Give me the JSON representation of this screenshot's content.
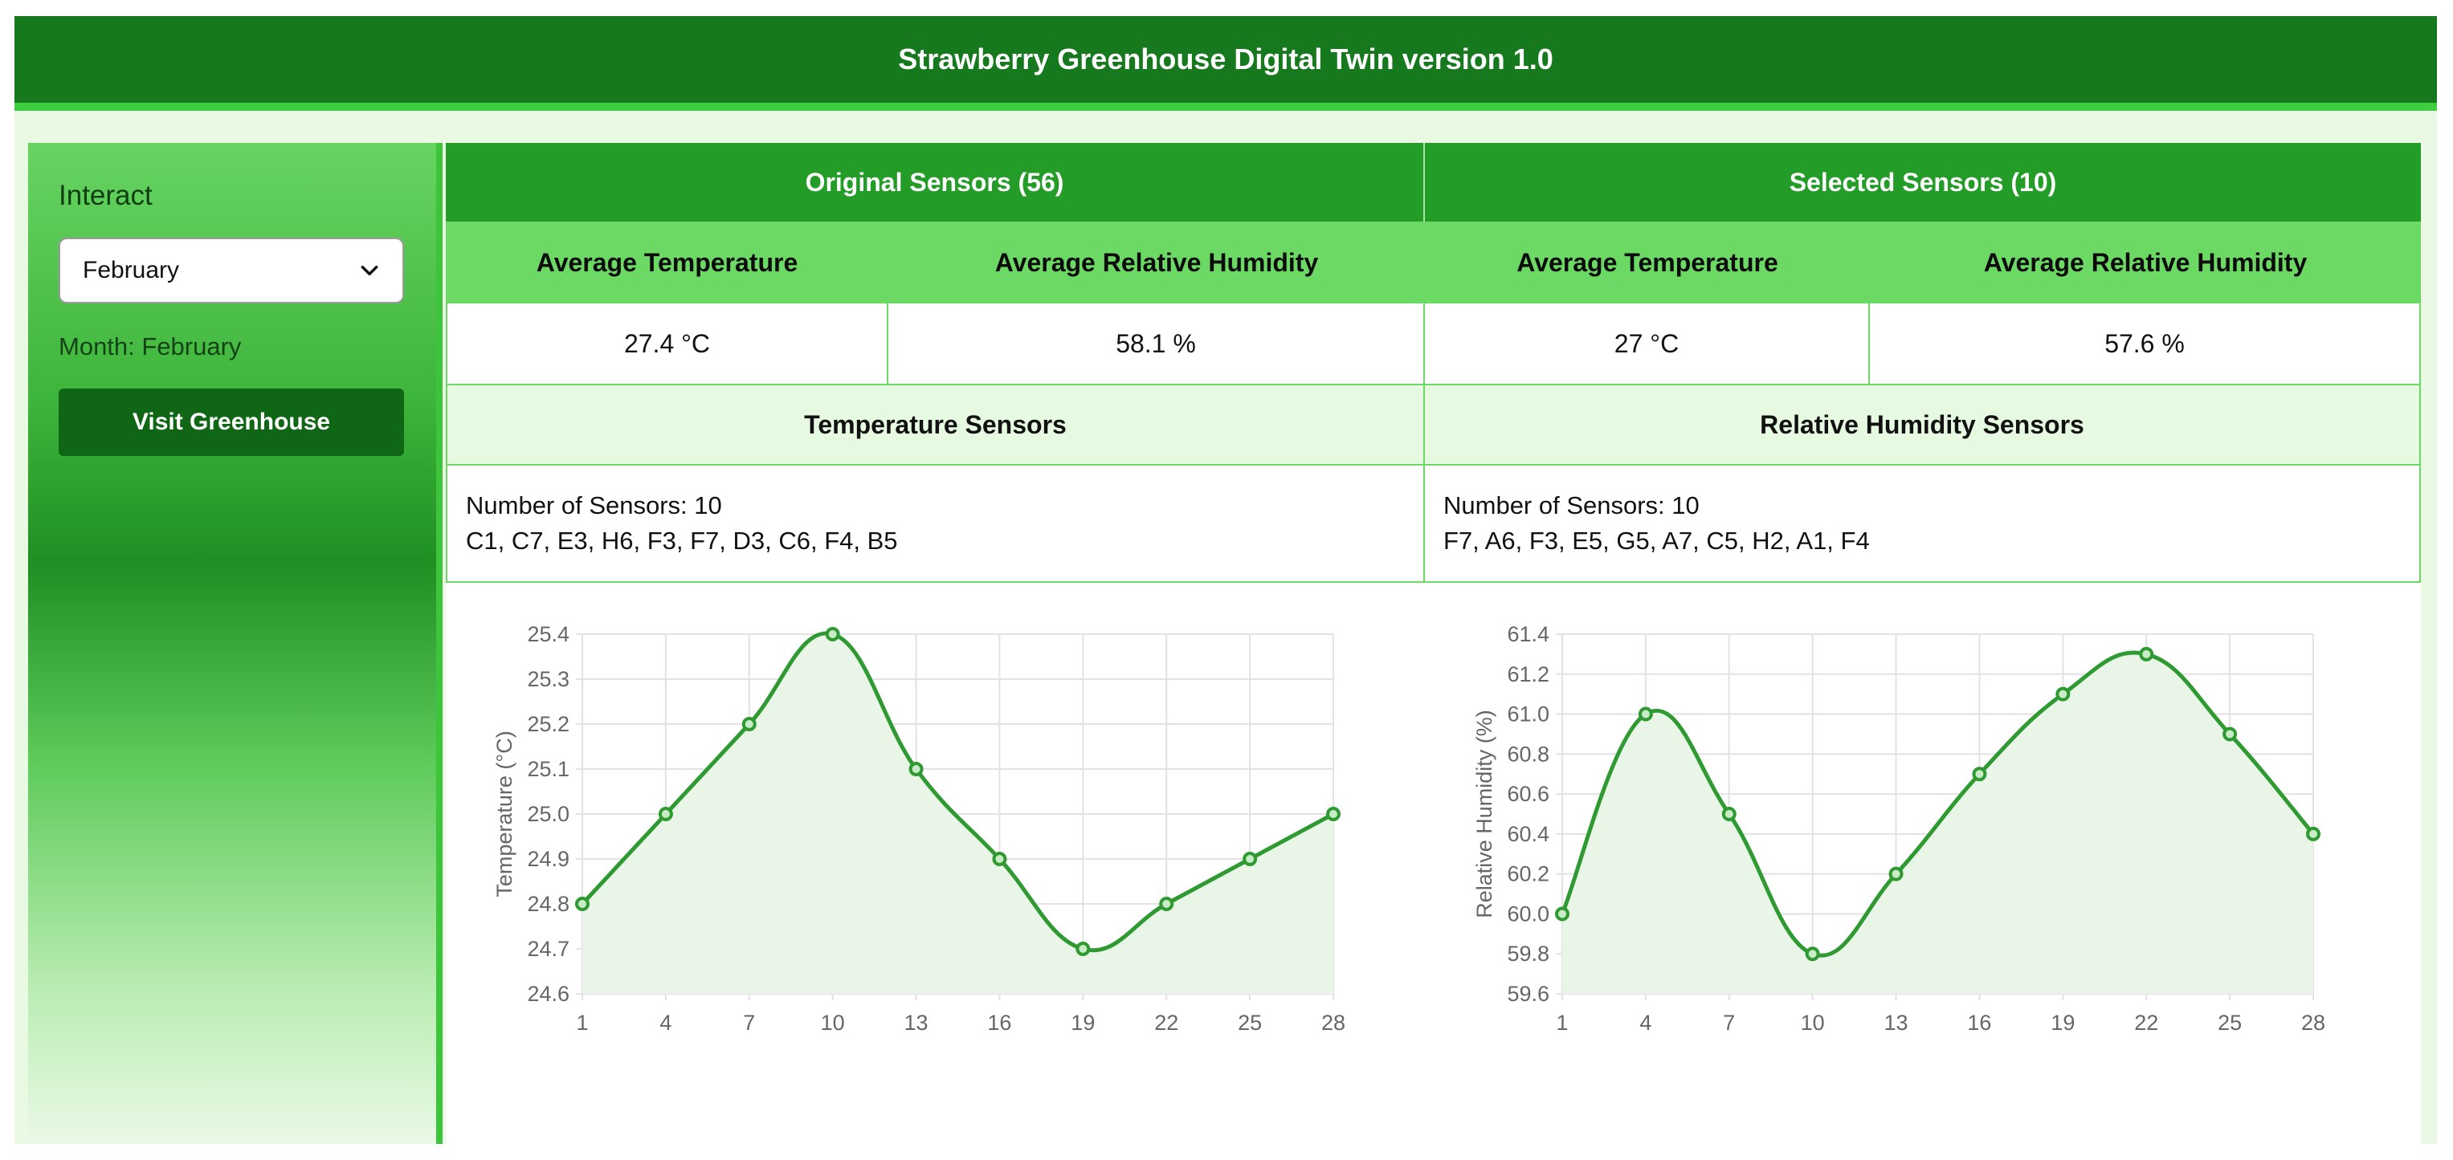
{
  "header": {
    "title": "Strawberry Greenhouse Digital Twin version 1.0"
  },
  "sidebar": {
    "title": "Interact",
    "month_select": {
      "value": "February"
    },
    "month_label": "Month: February",
    "visit_button": "Visit Greenhouse"
  },
  "summary": {
    "original": {
      "title": "Original Sensors (56)",
      "temp_header": "Average Temperature",
      "hum_header": "Average Relative Humidity",
      "temp_value": "27.4 °C",
      "hum_value": "58.1 %"
    },
    "selected": {
      "title": "Selected Sensors (10)",
      "temp_header": "Average Temperature",
      "hum_header": "Average Relative Humidity",
      "temp_value": "27 °C",
      "hum_value": "57.6 %"
    }
  },
  "sensors": {
    "temperature": {
      "title": "Temperature Sensors",
      "count_text": "Number of Sensors: 10",
      "list": "C1, C7, E3, H6, F3, F7, D3, C6, F4, B5"
    },
    "humidity": {
      "title": "Relative Humidity Sensors",
      "count_text": "Number of Sensors: 10",
      "list": "F7, A6, F3, E5, G5, A7, C5, H2, A1, F4"
    }
  },
  "colors": {
    "line": "#2e9a31",
    "fill": "#e9f6e7",
    "grid": "#e2e2e2"
  },
  "chart_data": [
    {
      "type": "line",
      "title": "",
      "xlabel": "",
      "ylabel": "Temperature (°C)",
      "x": [
        1,
        4,
        7,
        10,
        13,
        16,
        19,
        22,
        25,
        28
      ],
      "y": [
        24.8,
        25.0,
        25.2,
        25.4,
        25.1,
        24.9,
        24.7,
        24.8,
        24.9,
        25.0
      ],
      "ylim": [
        24.6,
        25.4
      ],
      "yticks": [
        "24.6",
        "24.7",
        "24.8",
        "24.9",
        "25.0",
        "25.1",
        "25.2",
        "25.3",
        "25.4"
      ],
      "xticks": [
        "1",
        "4",
        "7",
        "10",
        "13",
        "16",
        "19",
        "22",
        "25",
        "28"
      ],
      "grid": true,
      "fill": true
    },
    {
      "type": "line",
      "title": "",
      "xlabel": "",
      "ylabel": "Relative Humidity (%)",
      "x": [
        1,
        4,
        7,
        10,
        13,
        16,
        19,
        22,
        25,
        28
      ],
      "y": [
        60.0,
        61.0,
        60.5,
        59.8,
        60.2,
        60.7,
        61.1,
        61.3,
        60.9,
        60.4
      ],
      "ylim": [
        59.6,
        61.4
      ],
      "yticks": [
        "59.6",
        "59.8",
        "60.0",
        "60.2",
        "60.4",
        "60.6",
        "60.8",
        "61.0",
        "61.2",
        "61.4"
      ],
      "xticks": [
        "1",
        "4",
        "7",
        "10",
        "13",
        "16",
        "19",
        "22",
        "25",
        "28"
      ],
      "grid": true,
      "fill": true
    }
  ]
}
